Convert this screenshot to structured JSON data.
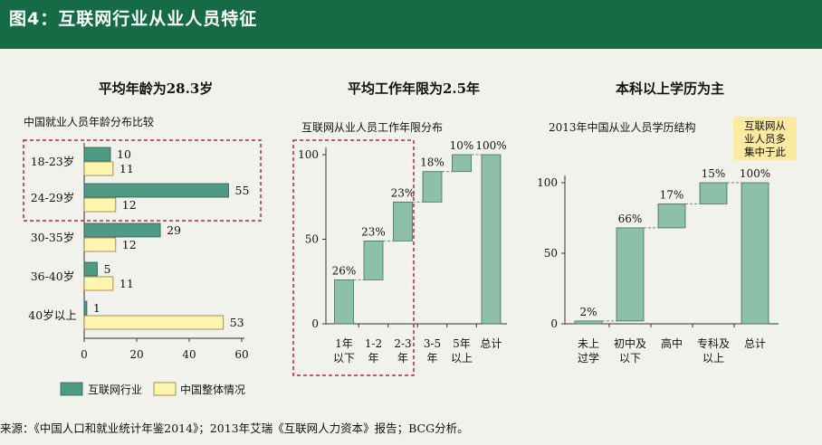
{
  "header": {
    "title": "图4：互联网行业从业人员特征"
  },
  "footer": {
    "source": "来源：《中国人口和就业统计年鉴2014》；2013年艾瑞《互联网人力资本》报告；BCG分析。"
  },
  "colors": {
    "header_bg": "#146b45",
    "internet": "#4e9a84",
    "overall": "#fff4b0",
    "waterfall": "#8dbfa9",
    "highlight": "#c0243b",
    "note_bg": "#fbeaa0"
  },
  "chart_data": [
    {
      "type": "bar",
      "orientation": "horizontal",
      "title": "平均年龄为28.3岁",
      "subtitle": "中国就业人员年龄分布比较",
      "categories": [
        "18-23岁",
        "24-29岁",
        "30-35岁",
        "36-40岁",
        "40岁以上"
      ],
      "series": [
        {
          "name": "互联网行业",
          "values": [
            10,
            55,
            29,
            5,
            1
          ]
        },
        {
          "name": "中国整体情况",
          "values": [
            11,
            12,
            12,
            11,
            53
          ]
        }
      ],
      "xlim": [
        0,
        60
      ],
      "xticks": [
        "0",
        "20",
        "40",
        "60"
      ],
      "legend": "bottom",
      "highlight": [
        "18-23岁",
        "24-29岁"
      ]
    },
    {
      "type": "waterfall",
      "title": "平均工作年限为2.5年",
      "subtitle": "互联网从业人员工作年限分布",
      "categories": [
        "1年以下",
        "1-2年",
        "2-3年",
        "3-5年",
        "5年以上",
        "总计"
      ],
      "category_lines": [
        [
          "1年",
          "以下"
        ],
        [
          "1-2",
          "年"
        ],
        [
          "2-3",
          "年"
        ],
        [
          "3-5",
          "年"
        ],
        [
          "5年",
          "以上"
        ],
        [
          "总计"
        ]
      ],
      "values": [
        26,
        23,
        23,
        18,
        10,
        100
      ],
      "labels": [
        "26%",
        "23%",
        "23%",
        "18%",
        "10%",
        "100%"
      ],
      "ylim": [
        0,
        100
      ],
      "yticks": [
        "0",
        "50",
        "100"
      ],
      "highlight": [
        "1年以下",
        "1-2年",
        "2-3年"
      ]
    },
    {
      "type": "waterfall",
      "title": "本科以上学历为主",
      "subtitle": "2013年中国从业人员学历结构",
      "categories": [
        "未上过学",
        "初中及以下",
        "高中",
        "专科及以上",
        "总计"
      ],
      "category_lines": [
        [
          "未上",
          "过学"
        ],
        [
          "初中及",
          "以下"
        ],
        [
          "高中"
        ],
        [
          "专科及",
          "以上"
        ],
        [
          "总计"
        ]
      ],
      "values": [
        2,
        66,
        17,
        15,
        100
      ],
      "labels": [
        "2%",
        "66%",
        "17%",
        "15%",
        "100%"
      ],
      "ylim": [
        0,
        100
      ],
      "yticks": [
        "0",
        "50",
        "100"
      ],
      "annotation": [
        "互联网从",
        "业人员多",
        "集中于此"
      ]
    }
  ]
}
